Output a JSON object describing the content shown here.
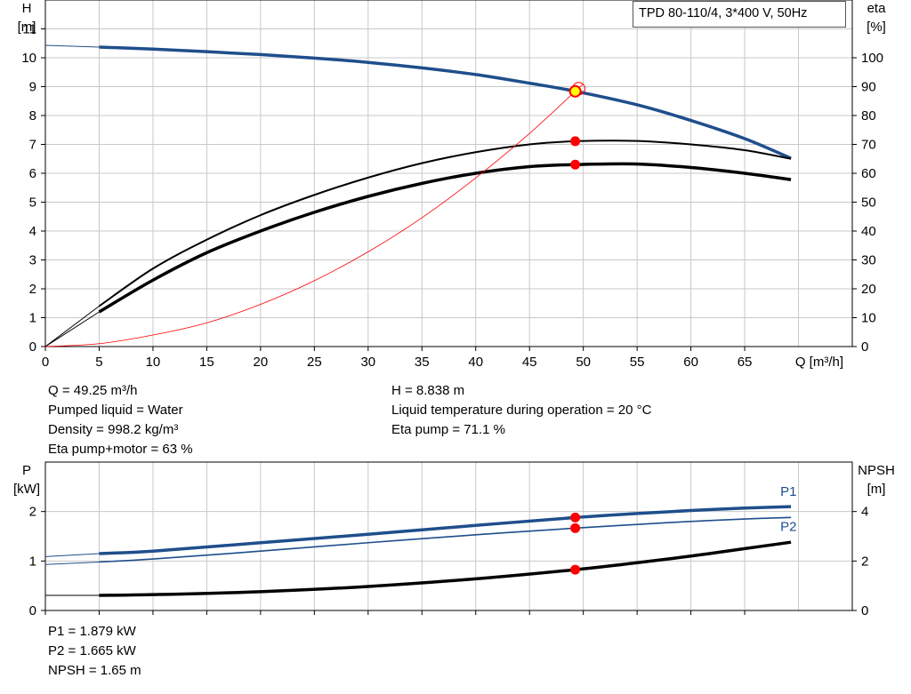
{
  "pump_title": "TPD 80-110/4, 3*400 V, 50Hz",
  "colors": {
    "H": "#1f4e8c",
    "eta": "#000000",
    "eta_total": "#ff0000",
    "P": "#1f4e8c",
    "NPSH": "#000000",
    "marker": "#ff0000",
    "marker_highlight": "#ffff00"
  },
  "duty_info": {
    "left": [
      "Q = 49.25 m³/h",
      "Pumped liquid = Water",
      "Density = 998.2 kg/m³",
      "Eta pump+motor = 63 %"
    ],
    "right": [
      "H = 8.838 m",
      "Liquid temperature during operation = 20 °C",
      "Eta pump = 71.1 %"
    ]
  },
  "power_info": [
    "P1 = 1.879 kW",
    "P2 = 1.665 kW",
    "NPSH = 1.65 m"
  ],
  "chart_data": [
    {
      "type": "line",
      "title": "",
      "xlabel": "Q [m³/h]",
      "ylabel": "H\n[m]",
      "y2label": "eta\n[%]",
      "xlim": [
        0,
        75
      ],
      "ylim": [
        0,
        12
      ],
      "y2lim": [
        0,
        120
      ],
      "xticks": [
        0,
        5,
        10,
        15,
        20,
        25,
        30,
        35,
        40,
        45,
        50,
        55,
        60,
        65
      ],
      "yticks": [
        0,
        1,
        2,
        3,
        4,
        5,
        6,
        7,
        8,
        9,
        10,
        11
      ],
      "y2ticks": [
        0,
        10,
        20,
        30,
        40,
        50,
        60,
        70,
        80,
        90,
        100
      ],
      "grid": true,
      "series": [
        {
          "name": "",
          "axis": "H",
          "color": "#1f4e8c",
          "width": 3.5,
          "x": [
            5,
            10,
            15,
            20,
            25,
            30,
            35,
            40,
            45,
            49.25,
            55,
            60,
            65,
            69.3
          ],
          "y": [
            10.37,
            10.3,
            10.21,
            10.11,
            9.99,
            9.84,
            9.65,
            9.42,
            9.12,
            8.84,
            8.37,
            7.83,
            7.2,
            6.52
          ]
        },
        {
          "name": "",
          "axis": "H",
          "color": "#1f4e8c",
          "width": 1,
          "extension": true,
          "x": [
            0,
            5
          ],
          "y": [
            10.43,
            10.37
          ]
        },
        {
          "name": "",
          "axis": "eta",
          "color": "#000000",
          "width": 2,
          "x": [
            5,
            10,
            15,
            20,
            25,
            30,
            35,
            40,
            45,
            49.25,
            55,
            60,
            65,
            69.3
          ],
          "y": [
            14,
            27,
            37,
            45.5,
            52.5,
            58.5,
            63.5,
            67.3,
            70,
            71.1,
            71.2,
            70,
            68,
            65
          ]
        },
        {
          "name": "",
          "axis": "eta",
          "color": "#000000",
          "width": 3.5,
          "x": [
            5,
            10,
            15,
            20,
            25,
            30,
            35,
            40,
            45,
            49.25,
            55,
            60,
            65,
            69.3
          ],
          "y": [
            12,
            23,
            32.5,
            40,
            46.5,
            52,
            56.5,
            60,
            62.3,
            63,
            63.2,
            62,
            60,
            57.8
          ]
        },
        {
          "name": "",
          "axis": "eta",
          "color": "#000000",
          "width": 1,
          "extension": true,
          "x": [
            0,
            5
          ],
          "y": [
            0,
            14
          ]
        },
        {
          "name": "",
          "axis": "eta",
          "color": "#000000",
          "width": 1,
          "extension": true,
          "x": [
            0,
            5
          ],
          "y": [
            0,
            12
          ]
        },
        {
          "name": "",
          "axis": "H",
          "color": "#ff0000",
          "width": 0.8,
          "x": [
            0,
            5,
            10,
            15,
            20,
            25,
            30,
            35,
            40,
            45,
            49.25,
            50
          ],
          "y": [
            0,
            0.1,
            0.4,
            0.82,
            1.46,
            2.28,
            3.28,
            4.46,
            5.84,
            7.38,
            8.84,
            9.1
          ]
        }
      ],
      "markers": [
        {
          "axis": "H",
          "x": 49.25,
          "y": 8.838,
          "fill": "#ffff00",
          "stroke": "#ff0000"
        },
        {
          "axis": "eta",
          "x": 49.25,
          "y": 71.1,
          "fill": "#ff0000"
        },
        {
          "axis": "eta",
          "x": 49.25,
          "y": 63,
          "fill": "#ff0000"
        }
      ]
    },
    {
      "type": "line",
      "title": "",
      "ylabel": "P\n[kW]",
      "y2label": "NPSH\n[m]",
      "xlim": [
        0,
        75
      ],
      "ylim": [
        0,
        3
      ],
      "y2lim": [
        0,
        6
      ],
      "xticks": [
        0,
        5,
        10,
        15,
        20,
        25,
        30,
        35,
        40,
        45,
        50,
        55,
        60,
        65
      ],
      "yticks": [
        0,
        1,
        2
      ],
      "y2ticks": [
        0,
        2,
        4
      ],
      "grid": true,
      "series": [
        {
          "name": "P1",
          "axis": "P",
          "color": "#1f4e8c",
          "width": 3.5,
          "x": [
            5,
            10,
            20,
            30,
            40,
            49.25,
            55,
            60,
            65,
            69.3
          ],
          "y": [
            1.15,
            1.2,
            1.37,
            1.54,
            1.72,
            1.879,
            1.96,
            2.02,
            2.07,
            2.1
          ]
        },
        {
          "name": "P2",
          "axis": "P",
          "color": "#1f4e8c",
          "width": 1.6,
          "x": [
            5,
            10,
            20,
            30,
            40,
            49.25,
            55,
            60,
            65,
            69.3
          ],
          "y": [
            0.98,
            1.04,
            1.2,
            1.37,
            1.53,
            1.665,
            1.74,
            1.8,
            1.85,
            1.88
          ]
        },
        {
          "name": "",
          "axis": "P",
          "color": "#1f4e8c",
          "width": 1,
          "extension": true,
          "x": [
            0,
            5
          ],
          "y": [
            1.09,
            1.15
          ]
        },
        {
          "name": "",
          "axis": "P",
          "color": "#1f4e8c",
          "width": 1,
          "extension": true,
          "x": [
            0,
            5
          ],
          "y": [
            0.93,
            0.98
          ]
        },
        {
          "name": "",
          "axis": "NPSH",
          "color": "#000000",
          "width": 3.5,
          "x": [
            5,
            10,
            20,
            30,
            40,
            49.25,
            55,
            60,
            65,
            69.3
          ],
          "y": [
            0.61,
            0.64,
            0.76,
            0.97,
            1.28,
            1.65,
            1.93,
            2.2,
            2.5,
            2.76
          ]
        },
        {
          "name": "",
          "axis": "NPSH",
          "color": "#000000",
          "width": 1,
          "extension": true,
          "x": [
            0,
            5
          ],
          "y": [
            0.61,
            0.61
          ]
        }
      ],
      "markers": [
        {
          "axis": "P",
          "x": 49.25,
          "y": 1.879,
          "fill": "#ff0000"
        },
        {
          "axis": "P",
          "x": 49.25,
          "y": 1.665,
          "fill": "#ff0000"
        },
        {
          "axis": "NPSH",
          "x": 49.25,
          "y": 1.65,
          "fill": "#ff0000"
        }
      ]
    }
  ]
}
